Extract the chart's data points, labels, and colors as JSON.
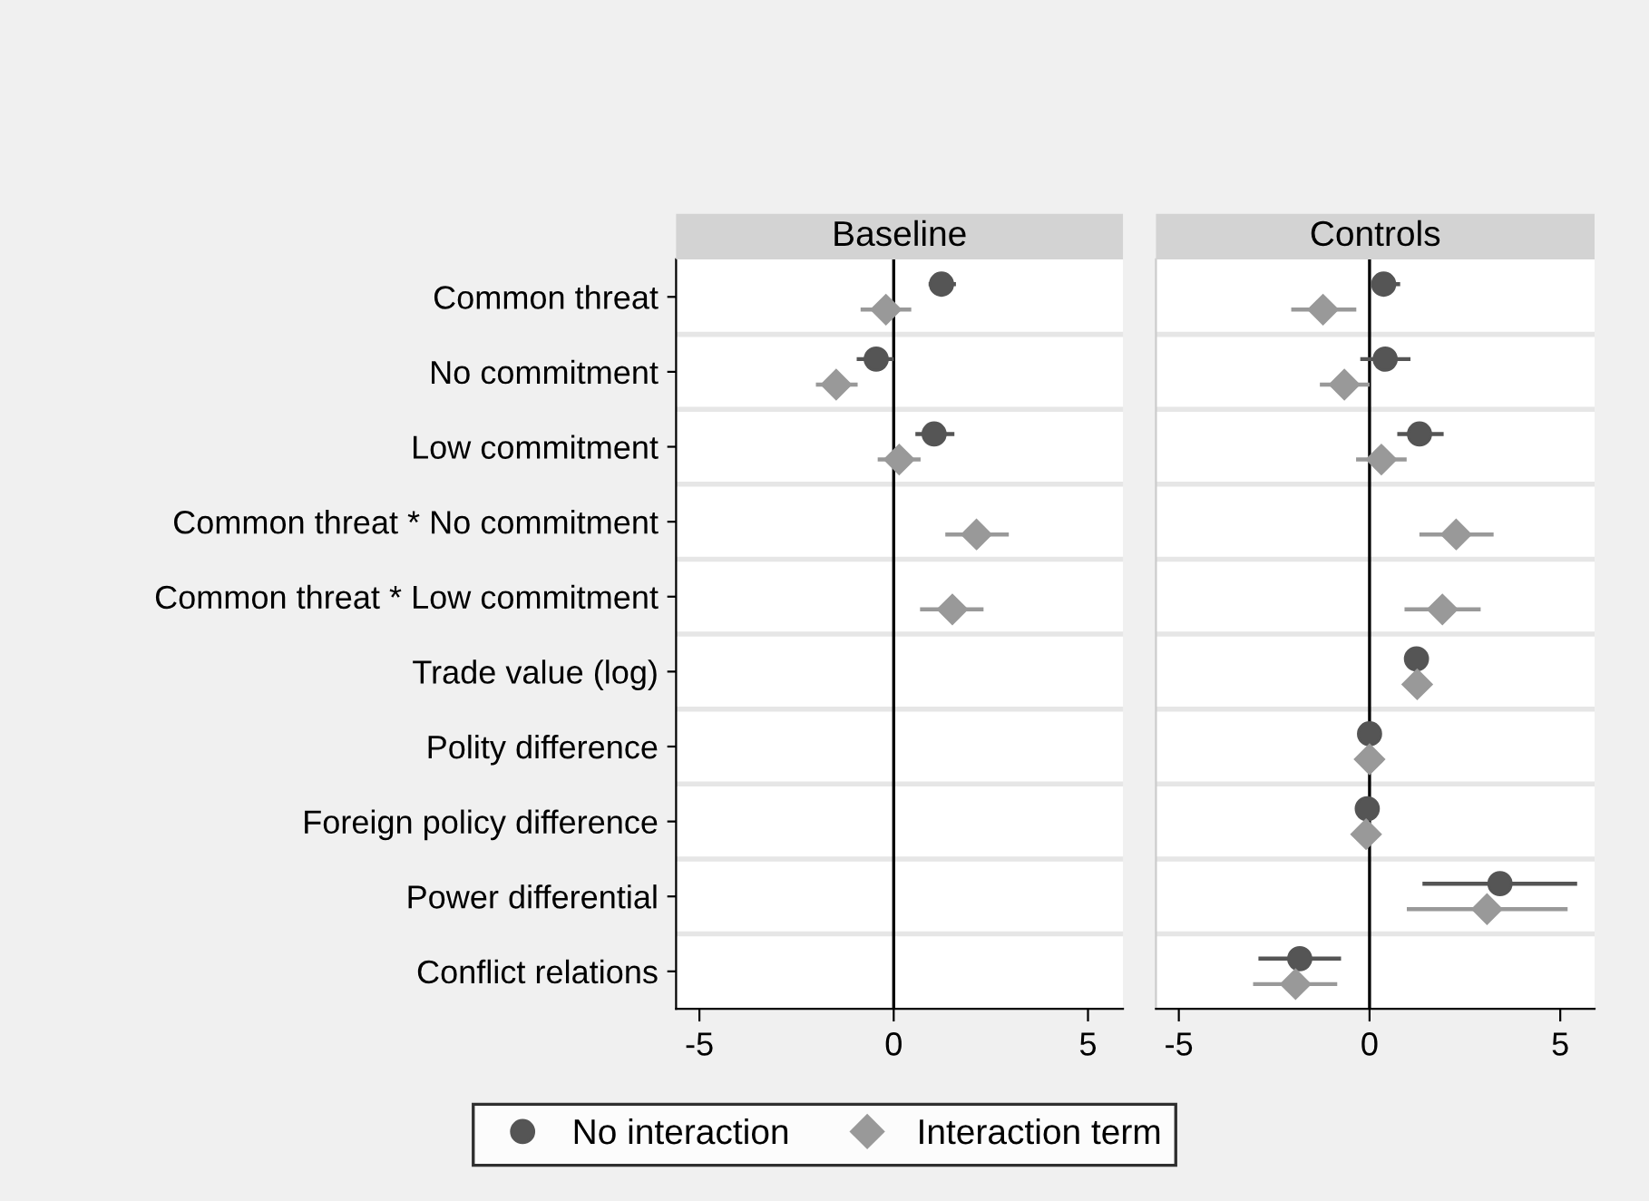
{
  "chart_data": [
    {
      "type": "scatter",
      "title": "Baseline",
      "orientation": "horizontal",
      "categories": [
        "Common threat",
        "No commitment",
        "Low commitment",
        "Common threat * No commitment",
        "Common threat * Low commitment",
        "Trade value (log)",
        "Polity difference",
        "Foreign policy difference",
        "Power differential",
        "Conflict relations"
      ],
      "xlim": [
        -5.6,
        5.9
      ],
      "xticks": [
        -5,
        0,
        5
      ],
      "grid": "y",
      "legend": "bottom",
      "series": [
        {
          "name": "No interaction",
          "color": "#555555",
          "marker": "circle",
          "values": [
            1.23,
            -0.45,
            1.04,
            null,
            null,
            null,
            null,
            null,
            null,
            null
          ],
          "errors": [
            [
              0.95,
              1.55
            ],
            [
              -0.9,
              -0.05
            ],
            [
              0.61,
              1.51
            ],
            null,
            null,
            null,
            null,
            null,
            null,
            null
          ]
        },
        {
          "name": "Interaction term",
          "color": "#999999",
          "marker": "diamond",
          "values": [
            -0.2,
            -1.48,
            0.14,
            2.13,
            1.51,
            null,
            null,
            null,
            null,
            null
          ],
          "errors": [
            [
              -0.8,
              0.4
            ],
            [
              -1.95,
              -0.98
            ],
            [
              -0.36,
              0.64
            ],
            [
              1.38,
              2.91
            ],
            [
              0.73,
              2.26
            ],
            null,
            null,
            null,
            null,
            null
          ]
        }
      ],
      "ref_lines": [
        {
          "axis": "x",
          "value": 0,
          "color": "#000000"
        }
      ]
    },
    {
      "type": "scatter",
      "title": "Controls",
      "orientation": "horizontal",
      "categories": [
        null,
        null,
        null,
        null,
        null,
        null,
        null,
        null,
        null,
        null
      ],
      "xlim": [
        -5.6,
        5.9
      ],
      "xticks": [
        -5,
        0,
        5
      ],
      "grid": "y",
      "tick_labels": "x",
      "series": [
        {
          "color": "#555555",
          "marker": "circle",
          "values": [
            0.37,
            0.41,
            1.31,
            null,
            null,
            1.23,
            0.0,
            -0.06,
            3.42,
            -1.83
          ],
          "errors": [
            [
              0.1,
              0.75
            ],
            [
              -0.19,
              1.02
            ],
            [
              0.78,
              1.89
            ],
            null,
            null,
            null,
            null,
            null,
            [
              1.44,
              5.39
            ],
            [
              -2.86,
              -0.8
            ]
          ]
        },
        {
          "color": "#999999",
          "marker": "diamond",
          "values": [
            -1.22,
            -0.66,
            0.31,
            2.27,
            1.91,
            1.25,
            0.0,
            -0.09,
            3.08,
            -1.94
          ],
          "errors": [
            [
              -2.0,
              -0.4
            ],
            [
              -1.25,
              -0.05
            ],
            [
              -0.3,
              0.92
            ],
            [
              1.36,
              3.2
            ],
            [
              0.97,
              2.86
            ],
            null,
            null,
            null,
            [
              1.03,
              5.14
            ],
            [
              -3.0,
              -0.9
            ]
          ]
        }
      ],
      "ref_lines": [
        {
          "axis": "x",
          "value": 0,
          "color": "#000000"
        }
      ]
    }
  ]
}
